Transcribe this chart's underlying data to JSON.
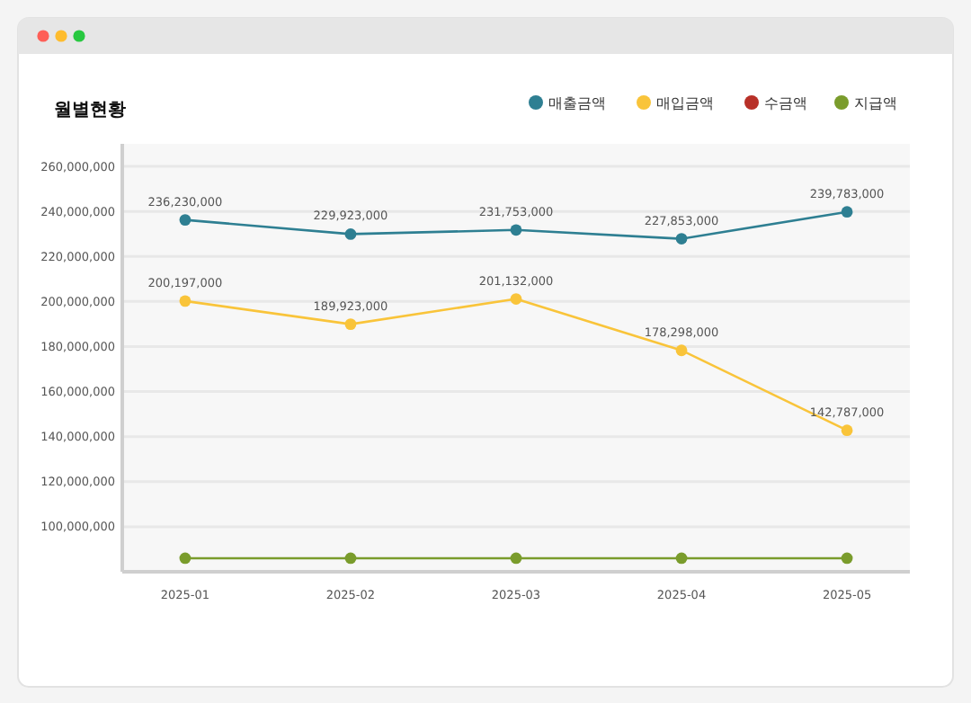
{
  "chart_data": {
    "type": "line",
    "title": "월별현황",
    "categories": [
      "2025-01",
      "2025-02",
      "2025-03",
      "2025-04",
      "2025-05"
    ],
    "series": [
      {
        "name": "매출금액",
        "color": "#2e7f92",
        "values": [
          236230000,
          229923000,
          231753000,
          227853000,
          239783000
        ],
        "value_labels": [
          "236,230,000",
          "229,923,000",
          "231,753,000",
          "227,853,000",
          "239,783,000"
        ]
      },
      {
        "name": "매입금액",
        "color": "#f9c43a",
        "values": [
          200197000,
          189923000,
          201132000,
          178298000,
          142787000
        ],
        "value_labels": [
          "200,197,000",
          "189,923,000",
          "201,132,000",
          "178,298,000",
          "142,787,000"
        ]
      },
      {
        "name": "수금액",
        "color": "#b83028",
        "values": [
          null,
          null,
          null,
          null,
          null
        ]
      },
      {
        "name": "지급액",
        "color": "#7a9c2c",
        "values": [
          86000000,
          86000000,
          86000000,
          86000000,
          86000000
        ]
      }
    ],
    "ylim": [
      80000000,
      270000000
    ],
    "yticks": [
      {
        "value": 100000000,
        "label": "100,000,000"
      },
      {
        "value": 120000000,
        "label": "120,000,000"
      },
      {
        "value": 140000000,
        "label": "140,000,000"
      },
      {
        "value": 160000000,
        "label": "160,000,000"
      },
      {
        "value": 180000000,
        "label": "180,000,000"
      },
      {
        "value": 200000000,
        "label": "200,000,000"
      },
      {
        "value": 220000000,
        "label": "220,000,000"
      },
      {
        "value": 240000000,
        "label": "240,000,000"
      },
      {
        "value": 260000000,
        "label": "260,000,000"
      }
    ],
    "grid": "y",
    "legend": "top right",
    "marker": "circle",
    "line_style": "solid"
  }
}
